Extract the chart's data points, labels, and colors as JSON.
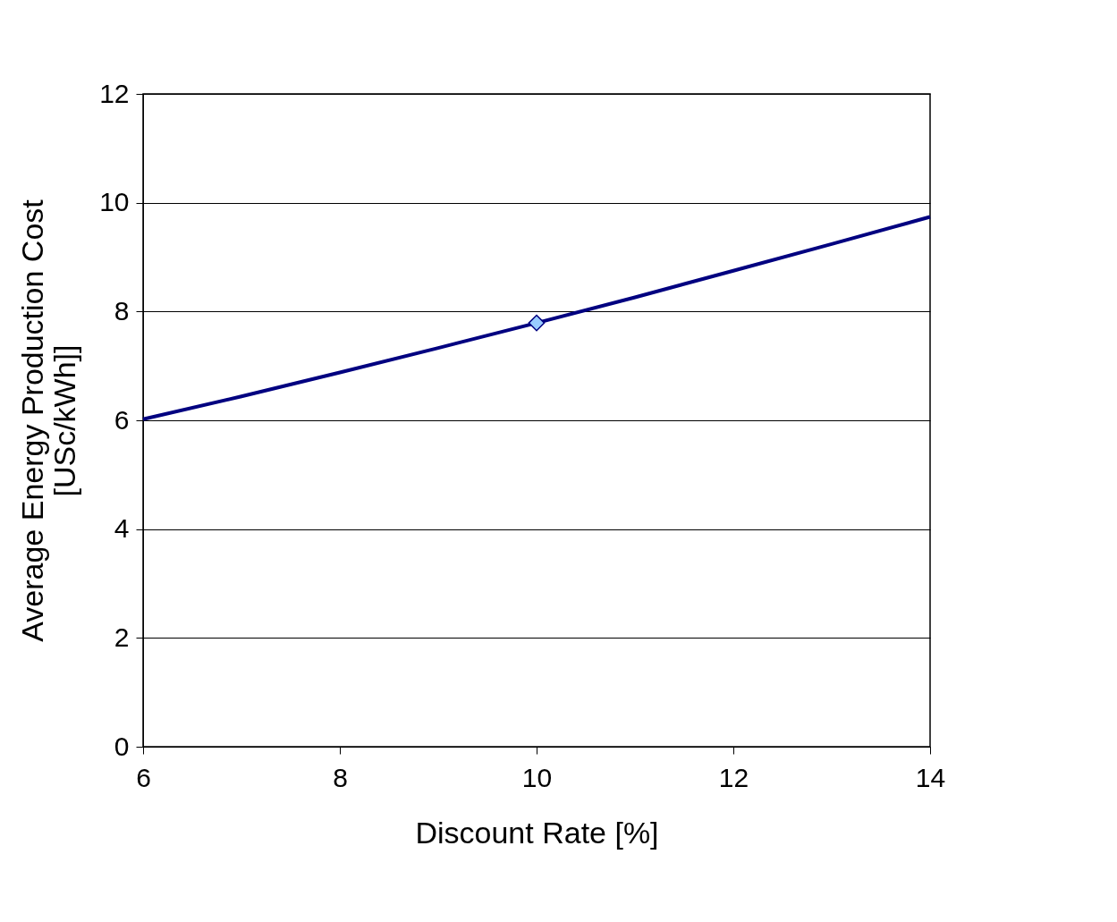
{
  "chart_data": {
    "type": "line",
    "xlabel": "Discount Rate [%]",
    "ylabel": "Average Energy Production Cost\n[USc/kWh]]",
    "series": [
      {
        "color": "#000080",
        "x": [
          6,
          7,
          8,
          9,
          10,
          11,
          12,
          13,
          14
        ],
        "values": [
          6.02,
          6.44,
          6.88,
          7.33,
          7.79,
          8.26,
          8.75,
          9.24,
          9.74
        ],
        "marker": "none",
        "line_style": "solid"
      },
      {
        "type": "scatter",
        "color": "#99ccff",
        "x": [
          10
        ],
        "values": [
          7.79
        ],
        "marker": "diamond"
      }
    ],
    "xlim": [
      6,
      14
    ],
    "xticks": [
      6,
      8,
      10,
      12,
      14
    ],
    "ylim": [
      0,
      12
    ],
    "yticks": [
      0,
      2,
      4,
      6,
      8,
      10,
      12
    ],
    "grid": "y"
  }
}
